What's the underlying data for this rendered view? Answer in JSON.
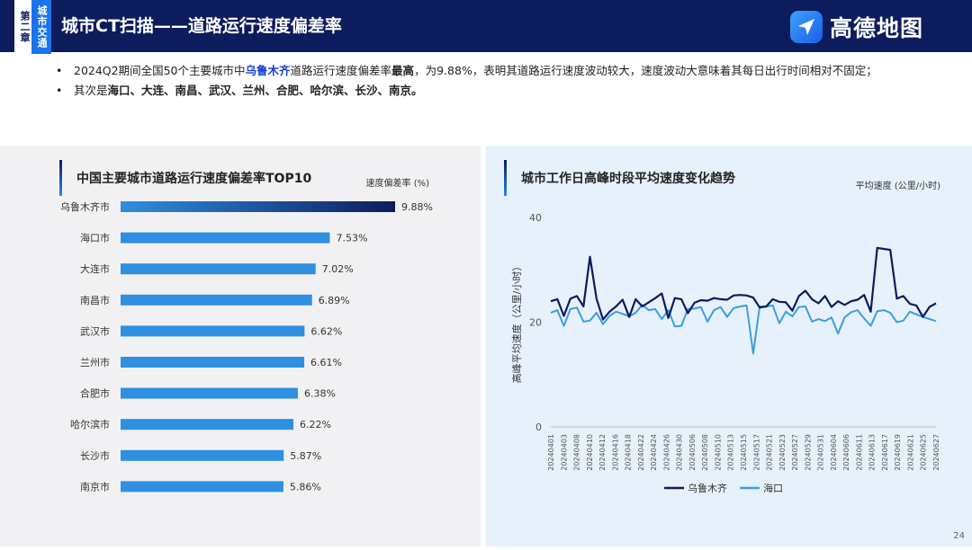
{
  "header": {
    "chapter_tag": "第二章",
    "section_tag": "城市交通",
    "title": "城市CT扫描——道路运行速度偏差率",
    "brand": "高德地图"
  },
  "bullets": [
    {
      "segments": [
        {
          "text": "2024Q2期间全国50个主要城市中",
          "bold": false,
          "color": ""
        },
        {
          "text": "乌鲁木齐",
          "bold": true,
          "color": "#1a3fd6"
        },
        {
          "text": "道路运行速度偏差率",
          "bold": false,
          "color": ""
        },
        {
          "text": "最高",
          "bold": true,
          "color": ""
        },
        {
          "text": "，为9.88%，表明其道路运行速度波动较大，速度波动大意味着其每日出行时间相对不固定；",
          "bold": false,
          "color": ""
        }
      ]
    },
    {
      "segments": [
        {
          "text": "其次是",
          "bold": false,
          "color": ""
        },
        {
          "text": "海口、大连、南昌、武汉、兰州、合肥、哈尔滨、长沙、南京。",
          "bold": true,
          "color": ""
        }
      ]
    }
  ],
  "page_number": "24",
  "chart_data": [
    {
      "type": "bar",
      "orientation": "horizontal",
      "title": "中国主要城市道路运行速度偏差率TOP10",
      "unit_label": "速度偏差率 (%)",
      "categories": [
        "乌鲁木齐市",
        "海口市",
        "大连市",
        "南昌市",
        "武汉市",
        "兰州市",
        "合肥市",
        "哈尔滨市",
        "长沙市",
        "南京市"
      ],
      "values": [
        9.88,
        7.53,
        7.02,
        6.89,
        6.62,
        6.61,
        6.38,
        6.22,
        5.87,
        5.86
      ],
      "value_labels": [
        "9.88%",
        "7.53%",
        "7.02%",
        "6.89%",
        "6.62%",
        "6.61%",
        "6.38%",
        "6.22%",
        "5.87%",
        "5.86%"
      ],
      "colors": {
        "top": "#0d1c5c",
        "bar": "#2f8fe0"
      }
    },
    {
      "type": "line",
      "title": "城市工作日高峰时段平均速度变化趋势",
      "unit_label": "平均速度 (公里/小时)",
      "ylabel": "高峰平均速度（公里/小时）",
      "ylim": [
        0,
        40
      ],
      "yticks": [
        0,
        20,
        40
      ],
      "grid": false,
      "legend": "bottom",
      "x_tick_labels": [
        "20240401",
        "20240403",
        "20240408",
        "20240410",
        "20240412",
        "20240416",
        "20240418",
        "20240422",
        "20240424",
        "20240426",
        "20240430",
        "20240506",
        "20240508",
        "20240510",
        "20240513",
        "20240515",
        "20240517",
        "20240521",
        "20240523",
        "20240527",
        "20240529",
        "20240531",
        "20240604",
        "20240606",
        "20240611",
        "20240613",
        "20240617",
        "20240619",
        "20240621",
        "20240625",
        "20240627"
      ],
      "series": [
        {
          "name": "乌鲁木齐",
          "color": "#0d1c5c",
          "values": [
            24,
            24.4,
            21.2,
            24.5,
            25,
            23,
            32.5,
            24.5,
            20.5,
            22,
            23,
            24.3,
            21,
            24.4,
            23,
            23.8,
            24.6,
            25.5,
            20.8,
            24.6,
            24.4,
            21.7,
            23.7,
            24.2,
            24.1,
            24.6,
            24.4,
            24.3,
            25.1,
            25.2,
            25.1,
            24.7,
            22.8,
            23,
            24.4,
            23.9,
            23.8,
            22.2,
            25,
            26,
            24.4,
            23.6,
            25,
            22.9,
            24,
            23.3,
            24,
            24.3,
            25.2,
            22,
            34.2,
            34,
            33.8,
            24.5,
            25,
            23.5,
            23.2,
            21,
            22.9,
            23.6
          ]
        },
        {
          "name": "海口",
          "color": "#3d9de0",
          "values": [
            21.8,
            22.3,
            19.3,
            22.5,
            22.8,
            20.1,
            20.3,
            21.8,
            19.6,
            21.2,
            22,
            21.6,
            21.1,
            21.8,
            23.3,
            22.3,
            22.5,
            20.6,
            22.3,
            19.2,
            19.3,
            22.5,
            22.6,
            22.9,
            20.1,
            22.3,
            22.9,
            21,
            22.7,
            23,
            23.2,
            14,
            23,
            23,
            23.2,
            19.8,
            22,
            21.1,
            22.9,
            23,
            20.1,
            20.6,
            20.2,
            20.9,
            17.8,
            20.9,
            21.9,
            22.3,
            20.7,
            19.3,
            22.1,
            22.3,
            21.8,
            20,
            20.3,
            22,
            21.5,
            21,
            20.6,
            20.2
          ]
        }
      ]
    }
  ]
}
